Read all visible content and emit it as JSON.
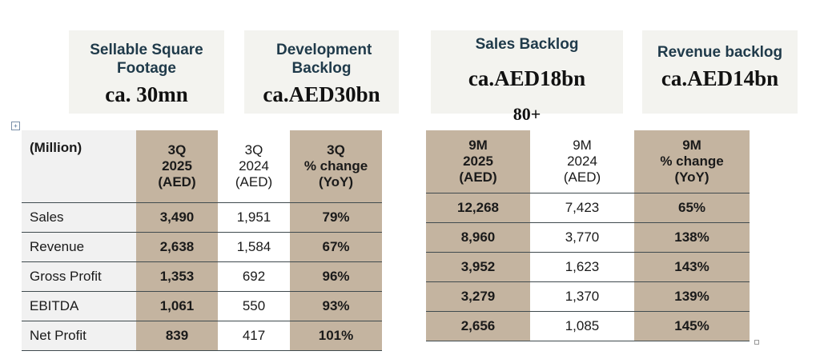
{
  "kpis": [
    {
      "label": "Sellable Square Footage",
      "value": "ca. 30mn"
    },
    {
      "label": "Development Backlog",
      "value": "ca.AED30bn"
    },
    {
      "label": "Sales Backlog",
      "value": "ca.AED18bn",
      "overflow": "80+"
    },
    {
      "label": "Revenue backlog",
      "value": "ca.AED14bn"
    }
  ],
  "left_table": {
    "corner": "(Million)",
    "headers": [
      {
        "l1": "3Q",
        "l2": "2025",
        "l3": "(AED)"
      },
      {
        "l1": "3Q",
        "l2": "2024",
        "l3": "(AED)"
      },
      {
        "l1": "3Q",
        "l2": "% change",
        "l3": "(YoY)"
      }
    ],
    "rows": [
      {
        "label": "Sales",
        "cur": "3,490",
        "prev": "1,951",
        "chg": "79%"
      },
      {
        "label": "Revenue",
        "cur": "2,638",
        "prev": "1,584",
        "chg": "67%"
      },
      {
        "label": "Gross Profit",
        "cur": "1,353",
        "prev": "692",
        "chg": "96%"
      },
      {
        "label": "EBITDA",
        "cur": "1,061",
        "prev": "550",
        "chg": "93%"
      },
      {
        "label": "Net Profit",
        "cur": "839",
        "prev": "417",
        "chg": "101%"
      }
    ]
  },
  "right_table": {
    "headers": [
      {
        "l1": "9M",
        "l2": "2025",
        "l3": "(AED)"
      },
      {
        "l1": "9M",
        "l2": "2024",
        "l3": "(AED)"
      },
      {
        "l1": "9M",
        "l2": "% change",
        "l3": "(YoY)"
      }
    ],
    "rows": [
      {
        "cur": "12,268",
        "prev": "7,423",
        "chg": "65%"
      },
      {
        "cur": "8,960",
        "prev": "3,770",
        "chg": "138%"
      },
      {
        "cur": "3,952",
        "prev": "1,623",
        "chg": "143%"
      },
      {
        "cur": "3,279",
        "prev": "1,370",
        "chg": "139%"
      },
      {
        "cur": "2,656",
        "prev": "1,085",
        "chg": "145%"
      }
    ]
  },
  "colors": {
    "tan": "#c4b4a0",
    "label_bg": "#f1f1f1",
    "kpi_bg": "#f3f3ef",
    "kpi_label": "#1f3a4a"
  }
}
